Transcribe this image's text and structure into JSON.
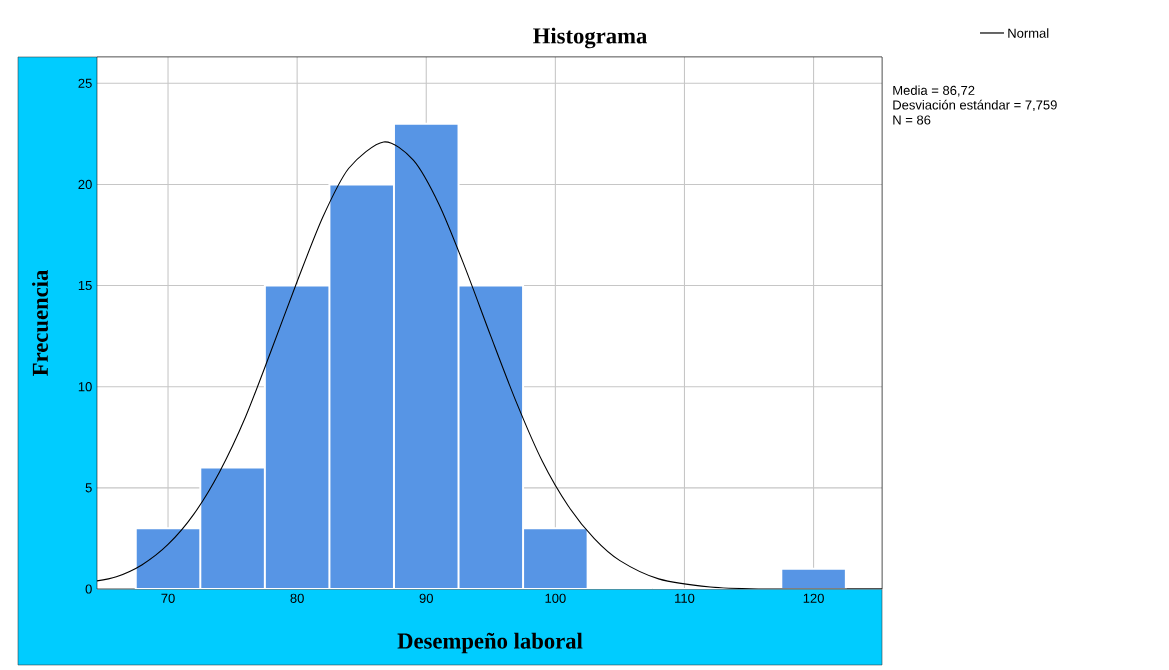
{
  "chart_data": {
    "type": "histogram",
    "title": "Histograma",
    "xlabel": "Desempeño laboral",
    "ylabel": "Frecuencia",
    "annotations": [
      "Media = 86,72",
      "Desviación estándar = 7,759",
      "N = 86"
    ],
    "series": [
      {
        "color": "#5795e5",
        "bins": [
          67.5,
          72.5,
          77.5,
          82.5,
          87.5,
          92.5,
          97.5,
          102.5,
          107.5,
          112.5,
          117.5,
          122.5
        ],
        "values": [
          3,
          6,
          15,
          20,
          23,
          15,
          3,
          0,
          0,
          0,
          1
        ]
      },
      {
        "type": "line",
        "name": "Normal",
        "color": "#000000",
        "x": [
          64.5,
          66,
          68,
          70,
          72,
          74,
          76,
          78,
          80,
          82,
          84,
          86.7,
          89,
          91,
          93,
          95,
          97,
          99,
          101,
          103,
          105,
          108,
          112,
          116,
          120,
          125.3
        ],
        "values": [
          0.4,
          0.6,
          1.2,
          2.2,
          3.7,
          5.8,
          8.5,
          11.8,
          15.2,
          18.4,
          20.8,
          22.1,
          21.2,
          19.0,
          15.9,
          12.5,
          9.2,
          6.3,
          4.1,
          2.5,
          1.4,
          0.5,
          0.1,
          0,
          0,
          0
        ]
      }
    ],
    "xlim": [
      64.5,
      125.3
    ],
    "ylim": [
      0,
      26.3
    ],
    "xticks": [
      70,
      80,
      90,
      100,
      110,
      120
    ],
    "yticks": [
      0,
      5,
      10,
      15,
      20,
      25
    ],
    "grid": true,
    "legend": "top right"
  }
}
